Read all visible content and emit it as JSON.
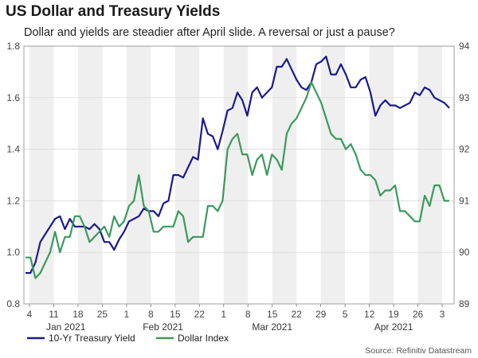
{
  "chart_data": {
    "type": "line",
    "title": "US Dollar and Treasury Yields",
    "subtitle": "Dollar and yields are steadier after April slide. A reversal or just a pause?",
    "source": "Source: Refinitiv Datastream",
    "x_tick_labels": [
      "4",
      "11",
      "18",
      "25",
      "1",
      "8",
      "15",
      "22",
      "1",
      "8",
      "15",
      "22",
      "29",
      "5",
      "12",
      "19",
      "26",
      "3"
    ],
    "month_labels": [
      "Jan 2021",
      "Feb 2021",
      "Mar 2021",
      "Apr 2021"
    ],
    "y_left": {
      "ylim": [
        0.8,
        1.8
      ],
      "ticks": [
        "0.8",
        "1.0",
        "1.2",
        "1.4",
        "1.6",
        "1.8"
      ]
    },
    "y_right": {
      "ylim": [
        89,
        94
      ],
      "ticks": [
        "89",
        "90",
        "91",
        "92",
        "93",
        "94"
      ]
    },
    "series": [
      {
        "name": "10-Yr Treasury Yield",
        "axis": "left",
        "color": "#1a1a8c",
        "values": [
          0.92,
          0.92,
          0.96,
          1.04,
          1.07,
          1.1,
          1.13,
          1.14,
          1.09,
          1.13,
          1.1,
          1.1,
          1.1,
          1.09,
          1.11,
          1.09,
          1.04,
          1.04,
          1.01,
          1.05,
          1.08,
          1.12,
          1.13,
          1.14,
          1.17,
          1.16,
          1.16,
          1.14,
          1.19,
          1.2,
          1.3,
          1.3,
          1.29,
          1.33,
          1.37,
          1.36,
          1.52,
          1.46,
          1.45,
          1.4,
          1.47,
          1.55,
          1.56,
          1.62,
          1.59,
          1.53,
          1.62,
          1.64,
          1.6,
          1.62,
          1.64,
          1.72,
          1.72,
          1.75,
          1.71,
          1.67,
          1.64,
          1.63,
          1.66,
          1.73,
          1.74,
          1.76,
          1.69,
          1.69,
          1.73,
          1.69,
          1.64,
          1.64,
          1.67,
          1.68,
          1.62,
          1.53,
          1.57,
          1.59,
          1.57,
          1.57,
          1.56,
          1.57,
          1.58,
          1.62,
          1.61,
          1.64,
          1.63,
          1.6,
          1.59,
          1.58,
          1.56
        ]
      },
      {
        "name": "Dollar Index",
        "axis": "right",
        "color": "#3a9a5c",
        "values": [
          89.9,
          89.9,
          89.5,
          89.6,
          89.8,
          90.0,
          90.4,
          90.0,
          90.3,
          90.3,
          90.7,
          90.7,
          90.5,
          90.2,
          90.3,
          90.4,
          90.5,
          90.3,
          90.7,
          90.5,
          90.6,
          90.9,
          91.0,
          91.5,
          90.9,
          90.8,
          90.4,
          90.4,
          90.5,
          90.5,
          90.5,
          90.8,
          90.7,
          90.2,
          90.3,
          90.3,
          90.3,
          90.9,
          90.9,
          90.8,
          91.0,
          92.0,
          92.2,
          92.3,
          91.9,
          91.9,
          91.5,
          91.8,
          91.9,
          91.5,
          91.9,
          91.8,
          91.6,
          92.3,
          92.5,
          92.6,
          92.8,
          93.0,
          93.3,
          93.1,
          92.9,
          92.6,
          92.3,
          92.2,
          92.2,
          92.0,
          92.1,
          91.9,
          91.6,
          91.5,
          91.5,
          91.4,
          91.1,
          91.2,
          91.2,
          91.3,
          90.8,
          90.8,
          90.7,
          90.6,
          90.6,
          91.1,
          90.9,
          91.3,
          91.3,
          91.0,
          91.0
        ]
      }
    ]
  }
}
